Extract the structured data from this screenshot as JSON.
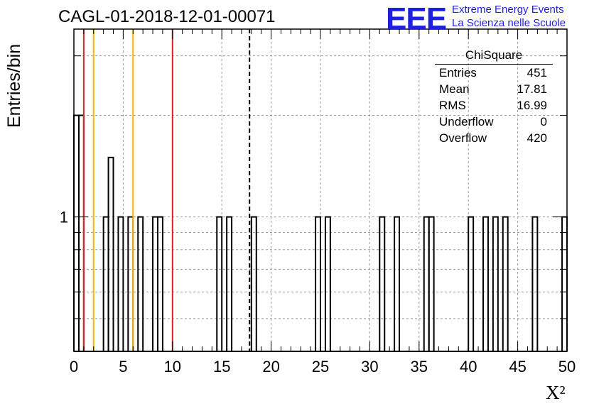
{
  "title": "CAGL-01-2018-12-01-00071",
  "logo": {
    "mark": "EEE",
    "line1": "Extreme Energy Events",
    "line2": "La Scienza nelle Scuole",
    "color": "#1f1fe0"
  },
  "stats": {
    "name": "ChiSquare",
    "rows": [
      {
        "label": "Entries",
        "value": "451"
      },
      {
        "label": "Mean",
        "value": "17.81"
      },
      {
        "label": "RMS",
        "value": "16.99"
      },
      {
        "label": "Underflow",
        "value": "0"
      },
      {
        "label": "Overflow",
        "value": "420"
      }
    ]
  },
  "chart_data": {
    "type": "bar",
    "xlabel": "X²",
    "ylabel": "Entries/bin",
    "xlim": [
      0,
      50
    ],
    "ylim": [
      0.4,
      3.6
    ],
    "log_y": true,
    "x_ticks": [
      0,
      5,
      10,
      15,
      20,
      25,
      30,
      35,
      40,
      45,
      50
    ],
    "y_ticks": [
      1
    ],
    "grid": true,
    "bin_width": 0.5,
    "bins": [
      {
        "x": 0.0,
        "y": 2
      },
      {
        "x": 0.5,
        "y": 2
      },
      {
        "x": 3.0,
        "y": 1
      },
      {
        "x": 3.5,
        "y": 1.5
      },
      {
        "x": 4.5,
        "y": 1
      },
      {
        "x": 5.5,
        "y": 1
      },
      {
        "x": 6.5,
        "y": 1
      },
      {
        "x": 8.0,
        "y": 1
      },
      {
        "x": 8.5,
        "y": 1
      },
      {
        "x": 14.5,
        "y": 1
      },
      {
        "x": 15.5,
        "y": 1
      },
      {
        "x": 18.0,
        "y": 1
      },
      {
        "x": 24.5,
        "y": 1
      },
      {
        "x": 25.5,
        "y": 1
      },
      {
        "x": 31.0,
        "y": 1
      },
      {
        "x": 32.5,
        "y": 1
      },
      {
        "x": 35.5,
        "y": 1
      },
      {
        "x": 36.0,
        "y": 1
      },
      {
        "x": 40.0,
        "y": 1
      },
      {
        "x": 41.5,
        "y": 1
      },
      {
        "x": 42.5,
        "y": 1
      },
      {
        "x": 43.5,
        "y": 1
      },
      {
        "x": 46.5,
        "y": 1
      },
      {
        "x": 49.5,
        "y": 1
      }
    ],
    "vlines": [
      {
        "x": 1,
        "color": "#dd2222",
        "style": "solid"
      },
      {
        "x": 10,
        "color": "#dd2222",
        "style": "solid"
      },
      {
        "x": 2,
        "color": "#f2b800",
        "style": "solid"
      },
      {
        "x": 6,
        "color": "#f2b800",
        "style": "solid"
      },
      {
        "x": 17.81,
        "color": "#000000",
        "style": "dashed"
      }
    ]
  }
}
